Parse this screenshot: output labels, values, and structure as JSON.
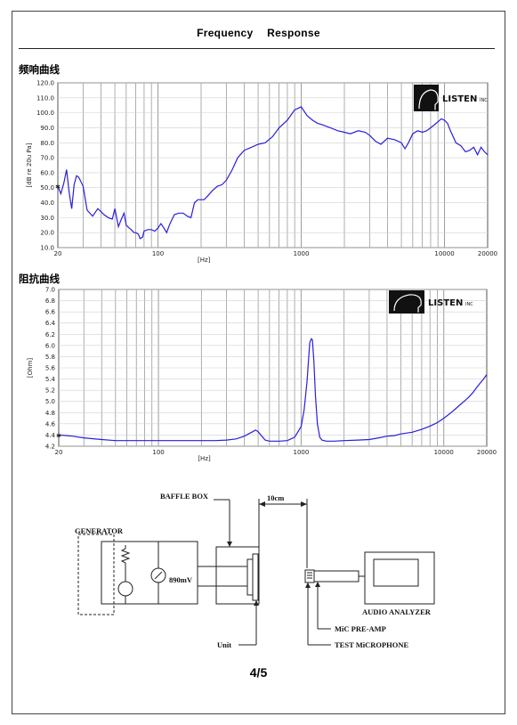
{
  "header": {
    "title": "Frequency Response"
  },
  "page_number": "4/5",
  "brand": {
    "name": "LISTEN",
    "suffix": "INC"
  },
  "colors": {
    "curve": "#2a1fd9",
    "grid": "#9a9a9a",
    "logo_bg": "#111111"
  },
  "chart_data": [
    {
      "type": "line",
      "title": "频响曲线",
      "ylabel": "[dB re 20u Pa]",
      "xlabel": "[Hz]",
      "x_scale": "log",
      "xlim": [
        20,
        20000
      ],
      "ylim": [
        10,
        120
      ],
      "x_tick_labels": [
        "20",
        "100",
        "1000",
        "10000",
        "20000"
      ],
      "y_tick_labels": [
        "120.0",
        "110.0",
        "100.0",
        "90.0",
        "80.0",
        "70.0",
        "60.0",
        "50.0",
        "40.0",
        "30.0",
        "20.0",
        "10.0"
      ],
      "grid": true,
      "x": [
        20,
        21,
        22,
        23,
        24,
        25,
        26,
        27,
        28,
        30,
        32,
        35,
        38,
        40,
        42,
        45,
        48,
        50,
        53,
        55,
        58,
        60,
        63,
        65,
        68,
        70,
        73,
        75,
        78,
        80,
        85,
        90,
        95,
        100,
        105,
        110,
        115,
        120,
        130,
        140,
        150,
        160,
        170,
        180,
        190,
        200,
        210,
        220,
        240,
        260,
        280,
        300,
        330,
        360,
        400,
        450,
        500,
        560,
        630,
        700,
        800,
        900,
        1000,
        1100,
        1200,
        1300,
        1400,
        1600,
        1800,
        2000,
        2200,
        2500,
        2800,
        3000,
        3300,
        3600,
        4000,
        4500,
        5000,
        5300,
        5600,
        6000,
        6500,
        7000,
        7500,
        8000,
        8500,
        9000,
        9500,
        10000,
        10500,
        11000,
        11500,
        12000,
        13000,
        14000,
        15000,
        16000,
        17000,
        18000,
        19000,
        20000
      ],
      "y": [
        51,
        46,
        53,
        62,
        47,
        36,
        52,
        58,
        57,
        51,
        35,
        31,
        36,
        34,
        32,
        30,
        29,
        36,
        24,
        28,
        33,
        25,
        23,
        22,
        20,
        20,
        19,
        16,
        17,
        21,
        22,
        22,
        21,
        23,
        26,
        23,
        20,
        25,
        32,
        33,
        33,
        31,
        30,
        40,
        42,
        42,
        42,
        44,
        48,
        51,
        52,
        55,
        62,
        70,
        75,
        77,
        79,
        80,
        84,
        90,
        95,
        102,
        104,
        98,
        95,
        93,
        92,
        90,
        88,
        87,
        86,
        88,
        87,
        85,
        81,
        79,
        83,
        82,
        80,
        76,
        80,
        86,
        88,
        87,
        88,
        90,
        92,
        94,
        96,
        95,
        93,
        88,
        84,
        80,
        78,
        74,
        75,
        77,
        72,
        77,
        74,
        72
      ]
    },
    {
      "type": "line",
      "title": "阻抗曲线",
      "ylabel": "[Ohm]",
      "xlabel": "[Hz]",
      "x_scale": "log",
      "xlim": [
        20,
        20000
      ],
      "ylim": [
        4.2,
        7.0
      ],
      "x_tick_labels": [
        "20",
        "100",
        "1000",
        "10000",
        "20000"
      ],
      "y_tick_labels": [
        "7.0",
        "6.8",
        "6.6",
        "6.4",
        "6.2",
        "6.0",
        "5.8",
        "5.6",
        "5.4",
        "5.2",
        "5.0",
        "4.8",
        "4.6",
        "4.4",
        "4.2"
      ],
      "grid": true,
      "x": [
        20,
        25,
        30,
        40,
        50,
        70,
        100,
        150,
        200,
        250,
        300,
        350,
        400,
        450,
        480,
        500,
        530,
        560,
        600,
        650,
        700,
        800,
        900,
        1000,
        1050,
        1100,
        1150,
        1180,
        1200,
        1230,
        1260,
        1300,
        1350,
        1400,
        1500,
        1700,
        2000,
        2500,
        3000,
        3500,
        4000,
        4500,
        5000,
        6000,
        7000,
        8000,
        9000,
        10000,
        11000,
        12000,
        13000,
        14000,
        15000,
        16000,
        17000,
        18000,
        19000,
        20000
      ],
      "y": [
        4.4,
        4.38,
        4.35,
        4.32,
        4.3,
        4.3,
        4.3,
        4.3,
        4.3,
        4.3,
        4.31,
        4.33,
        4.38,
        4.45,
        4.49,
        4.46,
        4.38,
        4.31,
        4.29,
        4.29,
        4.29,
        4.3,
        4.36,
        4.55,
        4.85,
        5.35,
        6.05,
        6.12,
        6.1,
        5.7,
        5.1,
        4.6,
        4.36,
        4.31,
        4.29,
        4.29,
        4.3,
        4.31,
        4.32,
        4.35,
        4.38,
        4.39,
        4.42,
        4.45,
        4.5,
        4.56,
        4.62,
        4.7,
        4.78,
        4.86,
        4.94,
        5.01,
        5.08,
        5.16,
        5.25,
        5.33,
        5.4,
        5.48
      ]
    }
  ],
  "diagram": {
    "generator_label": "GENERATOR",
    "baffle_label": "BAFFLE BOX",
    "voltage_label": "890mV",
    "distance_label": "10cm",
    "analyzer_label": "AUDIO ANALYZER",
    "preamp_label": "MiC PRE-AMP",
    "microphone_label": "TEST MiCROPHONE",
    "unit_label": "Unit"
  }
}
